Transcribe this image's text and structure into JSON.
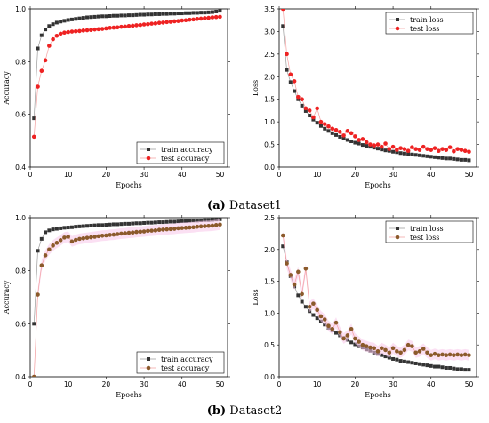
{
  "captions": [
    {
      "letter": "(a)",
      "text": "Dataset1"
    },
    {
      "letter": "(b)",
      "text": "Dataset2"
    }
  ],
  "colors": {
    "train": "#333333",
    "test_a": "#ee2222",
    "test_b": "#8b5a2b",
    "band": "#f7c6ea"
  },
  "chart_data": [
    {
      "type": "line",
      "xlabel": "Epochs",
      "ylabel": "Accuracy",
      "xlim": [
        0,
        52
      ],
      "ylim": [
        0.4,
        1.0
      ],
      "xticks": [
        0,
        10,
        20,
        30,
        40,
        50
      ],
      "yticks": [
        0.4,
        0.6,
        0.8,
        1.0
      ],
      "ytick_labels": [
        "0.4",
        "0.6",
        "0.8",
        "1.0"
      ],
      "legend": "bottom-right",
      "series": [
        {
          "name": "train accuracy",
          "marker": "square",
          "color": "#333333",
          "values": [
            0.585,
            0.85,
            0.9,
            0.922,
            0.935,
            0.942,
            0.948,
            0.952,
            0.955,
            0.958,
            0.96,
            0.962,
            0.964,
            0.966,
            0.968,
            0.969,
            0.97,
            0.971,
            0.972,
            0.972,
            0.973,
            0.974,
            0.974,
            0.975,
            0.975,
            0.976,
            0.976,
            0.977,
            0.978,
            0.978,
            0.979,
            0.979,
            0.98,
            0.98,
            0.981,
            0.981,
            0.982,
            0.982,
            0.983,
            0.983,
            0.984,
            0.984,
            0.985,
            0.985,
            0.986,
            0.986,
            0.987,
            0.988,
            0.99,
            0.993
          ]
        },
        {
          "name": "test accuracy",
          "marker": "circle",
          "color": "#ee2222",
          "values": [
            0.515,
            0.705,
            0.765,
            0.805,
            0.86,
            0.885,
            0.898,
            0.906,
            0.91,
            0.912,
            0.914,
            0.915,
            0.916,
            0.918,
            0.919,
            0.92,
            0.922,
            0.923,
            0.924,
            0.926,
            0.928,
            0.929,
            0.93,
            0.932,
            0.933,
            0.935,
            0.936,
            0.938,
            0.939,
            0.941,
            0.942,
            0.944,
            0.945,
            0.947,
            0.948,
            0.95,
            0.951,
            0.953,
            0.954,
            0.956,
            0.957,
            0.959,
            0.96,
            0.962,
            0.963,
            0.965,
            0.966,
            0.968,
            0.969,
            0.97
          ]
        }
      ]
    },
    {
      "type": "line",
      "xlabel": "Epochs",
      "ylabel": "Loss",
      "xlim": [
        0,
        52
      ],
      "ylim": [
        0,
        3.5
      ],
      "xticks": [
        0,
        10,
        20,
        30,
        40,
        50
      ],
      "yticks": [
        0,
        0.5,
        1.0,
        1.5,
        2.0,
        2.5,
        3.0,
        3.5
      ],
      "ytick_labels": [
        "0.0",
        "0.5",
        "1.0",
        "1.5",
        "2.0",
        "2.5",
        "3.0",
        "3.5"
      ],
      "legend": "top-right",
      "series": [
        {
          "name": "train loss",
          "marker": "square",
          "color": "#333333",
          "values": [
            3.12,
            2.15,
            1.88,
            1.68,
            1.5,
            1.36,
            1.24,
            1.14,
            1.05,
            0.98,
            0.91,
            0.85,
            0.8,
            0.75,
            0.71,
            0.67,
            0.63,
            0.6,
            0.57,
            0.54,
            0.52,
            0.49,
            0.47,
            0.45,
            0.43,
            0.41,
            0.39,
            0.37,
            0.36,
            0.34,
            0.33,
            0.31,
            0.3,
            0.29,
            0.28,
            0.27,
            0.26,
            0.25,
            0.24,
            0.23,
            0.22,
            0.21,
            0.2,
            0.19,
            0.19,
            0.18,
            0.17,
            0.16,
            0.16,
            0.15
          ]
        },
        {
          "name": "test loss",
          "marker": "circle",
          "color": "#ee2222",
          "values": [
            3.5,
            2.5,
            2.05,
            1.9,
            1.55,
            1.5,
            1.3,
            1.25,
            1.1,
            1.3,
            1.0,
            0.95,
            0.9,
            0.85,
            0.82,
            0.78,
            0.7,
            0.8,
            0.75,
            0.68,
            0.6,
            0.62,
            0.55,
            0.5,
            0.48,
            0.5,
            0.45,
            0.52,
            0.4,
            0.45,
            0.38,
            0.42,
            0.4,
            0.36,
            0.44,
            0.4,
            0.38,
            0.45,
            0.4,
            0.38,
            0.42,
            0.36,
            0.4,
            0.38,
            0.44,
            0.35,
            0.4,
            0.38,
            0.36,
            0.34
          ]
        }
      ]
    },
    {
      "type": "line",
      "xlabel": "Epochs",
      "ylabel": "Accuracy",
      "xlim": [
        0,
        52
      ],
      "ylim": [
        0.4,
        1.0
      ],
      "xticks": [
        0,
        10,
        20,
        30,
        40,
        50
      ],
      "yticks": [
        0.4,
        0.6,
        0.8,
        1.0
      ],
      "ytick_labels": [
        "0.4",
        "0.6",
        "0.8",
        "1.0"
      ],
      "legend": "bottom-right",
      "series": [
        {
          "name": "train accuracy",
          "marker": "square",
          "color": "#333333",
          "values": [
            0.6,
            0.875,
            0.92,
            0.945,
            0.952,
            0.956,
            0.958,
            0.96,
            0.962,
            0.963,
            0.964,
            0.966,
            0.967,
            0.968,
            0.969,
            0.97,
            0.971,
            0.972,
            0.972,
            0.973,
            0.974,
            0.975,
            0.975,
            0.976,
            0.977,
            0.977,
            0.978,
            0.979,
            0.979,
            0.98,
            0.981,
            0.981,
            0.982,
            0.983,
            0.983,
            0.984,
            0.985,
            0.985,
            0.986,
            0.987,
            0.987,
            0.988,
            0.989,
            0.989,
            0.99,
            0.991,
            0.991,
            0.992,
            0.993,
            0.994
          ]
        },
        {
          "name": "test accuracy",
          "marker": "circle",
          "color": "#8b5a2b",
          "values": [
            0.4,
            0.71,
            0.82,
            0.858,
            0.88,
            0.895,
            0.905,
            0.915,
            0.925,
            0.928,
            0.91,
            0.916,
            0.92,
            0.922,
            0.924,
            0.926,
            0.928,
            0.93,
            0.932,
            0.933,
            0.935,
            0.936,
            0.938,
            0.94,
            0.941,
            0.943,
            0.944,
            0.946,
            0.947,
            0.948,
            0.95,
            0.951,
            0.952,
            0.954,
            0.955,
            0.956,
            0.957,
            0.958,
            0.96,
            0.961,
            0.962,
            0.963,
            0.964,
            0.966,
            0.967,
            0.968,
            0.969,
            0.97,
            0.972,
            0.974
          ]
        }
      ]
    },
    {
      "type": "line",
      "xlabel": "Epochs",
      "ylabel": "Loss",
      "xlim": [
        0,
        52
      ],
      "ylim": [
        0,
        2.5
      ],
      "xticks": [
        0,
        10,
        20,
        30,
        40,
        50
      ],
      "yticks": [
        0,
        0.5,
        1.0,
        1.5,
        2.0,
        2.5
      ],
      "ytick_labels": [
        "0.0",
        "0.5",
        "1.0",
        "1.5",
        "2.0",
        "2.5"
      ],
      "legend": "top-right",
      "series": [
        {
          "name": "train loss",
          "marker": "square",
          "color": "#333333",
          "values": [
            2.05,
            1.8,
            1.58,
            1.42,
            1.28,
            1.18,
            1.1,
            1.03,
            0.97,
            0.92,
            0.87,
            0.82,
            0.77,
            0.73,
            0.69,
            0.65,
            0.61,
            0.58,
            0.54,
            0.51,
            0.48,
            0.46,
            0.43,
            0.41,
            0.38,
            0.36,
            0.34,
            0.32,
            0.3,
            0.28,
            0.27,
            0.25,
            0.24,
            0.23,
            0.22,
            0.21,
            0.2,
            0.19,
            0.18,
            0.17,
            0.16,
            0.16,
            0.15,
            0.14,
            0.14,
            0.13,
            0.12,
            0.12,
            0.11,
            0.11
          ]
        },
        {
          "name": "test loss",
          "marker": "circle",
          "color": "#8b5a2b",
          "values": [
            2.22,
            1.78,
            1.6,
            1.45,
            1.65,
            1.3,
            1.7,
            1.1,
            1.15,
            1.05,
            0.95,
            0.9,
            0.8,
            0.75,
            0.85,
            0.7,
            0.6,
            0.65,
            0.75,
            0.6,
            0.55,
            0.5,
            0.48,
            0.46,
            0.45,
            0.4,
            0.45,
            0.42,
            0.38,
            0.45,
            0.4,
            0.38,
            0.42,
            0.5,
            0.48,
            0.38,
            0.4,
            0.44,
            0.38,
            0.34,
            0.36,
            0.34,
            0.35,
            0.34,
            0.35,
            0.34,
            0.35,
            0.34,
            0.35,
            0.34
          ]
        }
      ]
    }
  ]
}
